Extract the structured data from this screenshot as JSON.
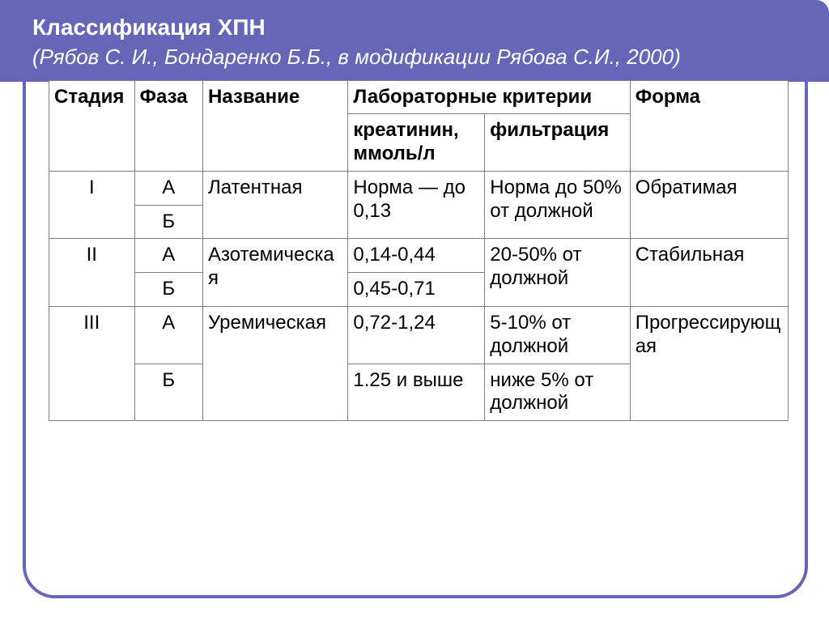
{
  "header": {
    "title": "Классификация ХПН",
    "subtitle": "(Рябов С. И., Бондаренко Б.Б., в модификации Рябова С.И., 2000)"
  },
  "columns": {
    "stage": "Стадия",
    "phase": "Фаза",
    "name": "Название",
    "lab": "Лабораторные критерии",
    "creatinine": "креатинин, ммоль/л",
    "filtration": "фильтрация",
    "form": "Форма"
  },
  "rows": {
    "r1": {
      "stage": "I",
      "phaseA": "А",
      "phaseB": "Б",
      "name": "Латентная",
      "cre": "Норма — до 0,13",
      "fil": "Норма до 50% от должной",
      "form": "Обратимая"
    },
    "r2": {
      "stage": "II",
      "phaseA": "А",
      "phaseB": "Б",
      "name": "Азотемическая",
      "creA": "0,14-0,44",
      "creB": "0,45-0,71",
      "fil": "20-50% от должной",
      "form": "Стабильная"
    },
    "r3": {
      "stage": "III",
      "phaseA": "А",
      "phaseB": "Б",
      "name": "Уремическая",
      "creA": "0,72-1,24",
      "creB": "1.25 и выше",
      "filA": "5-10% от должной",
      "filB": "ниже 5% от должной",
      "form": "Прогрессирующая"
    }
  },
  "colors": {
    "accent": "#6666b8",
    "border": "#808080",
    "text_light": "#ffffff",
    "background": "#ffffff"
  },
  "typography": {
    "title_fontsize": 28,
    "subtitle_fontsize": 26,
    "cell_fontsize": 24,
    "font_family": "Arial"
  }
}
